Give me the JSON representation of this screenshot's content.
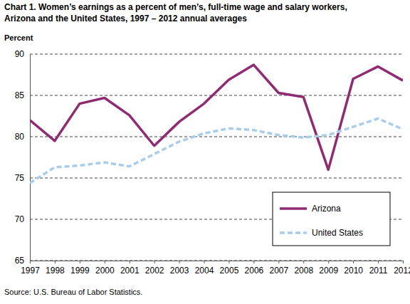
{
  "chart_data": {
    "type": "line",
    "title": [
      "Chart 1. Women’s earnings as a percent of men’s, full-time wage and salary workers,",
      "Arizona and the United States, 1997 – 2012 annual averages"
    ],
    "y_label": "Percent",
    "source": "Source: U.S. Bureau of Labor Statistics.",
    "categories": [
      "1997",
      "1998",
      "1999",
      "2000",
      "2001",
      "2002",
      "2003",
      "2004",
      "2005",
      "2006",
      "2007",
      "2008",
      "2009",
      "2010",
      "2011",
      "2012"
    ],
    "series": [
      {
        "name": "Arizona",
        "color": "#8e2b72",
        "line_style": "solid",
        "values": [
          82.0,
          79.5,
          84.0,
          84.7,
          82.6,
          78.9,
          81.8,
          84.0,
          86.9,
          88.7,
          85.3,
          84.8,
          76.0,
          87.0,
          88.5,
          86.8
        ]
      },
      {
        "name": "United States",
        "color": "#a8cdea",
        "line_style": "dashed",
        "values": [
          74.4,
          76.3,
          76.5,
          76.9,
          76.4,
          77.9,
          79.4,
          80.4,
          81.0,
          80.8,
          80.2,
          79.9,
          80.2,
          81.2,
          82.2,
          80.9
        ]
      }
    ],
    "ylim": [
      65,
      90
    ],
    "yticks": [
      65,
      70,
      75,
      80,
      85,
      90
    ],
    "grid": true,
    "legend": "lower right"
  }
}
